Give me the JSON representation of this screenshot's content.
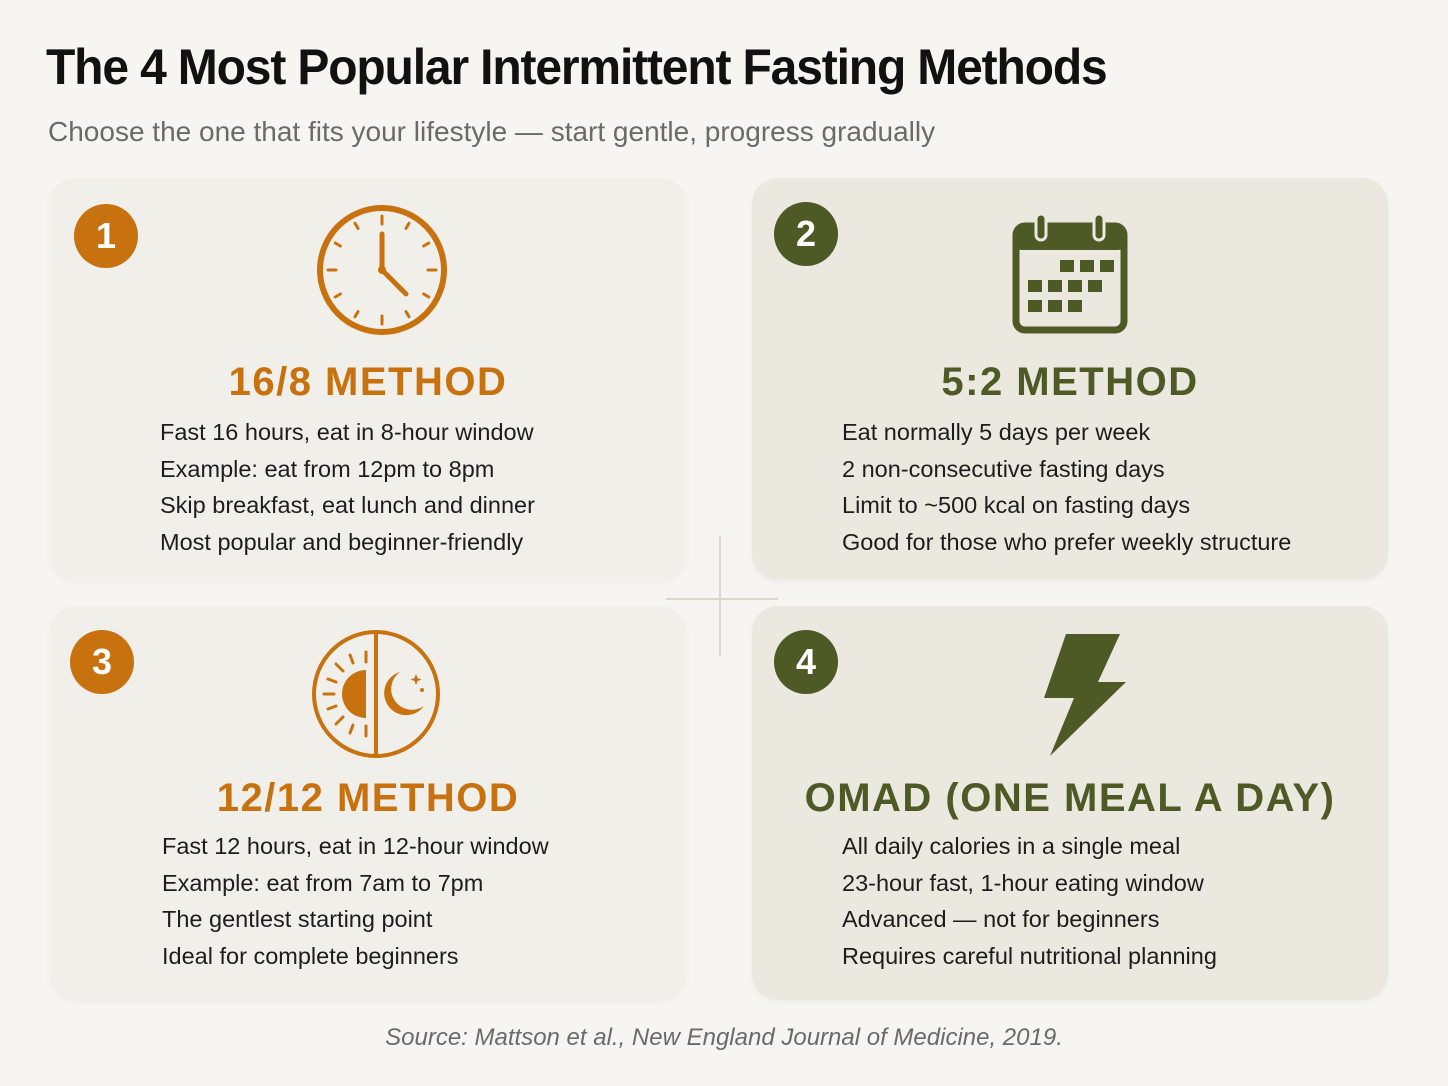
{
  "header": {
    "title": "The 4 Most Popular Intermittent Fasting Methods",
    "subtitle": "Choose the one that fits your lifestyle — start gentle, progress gradually"
  },
  "colors": {
    "orange_accent": "#c8720f",
    "green_accent": "#4d5a25",
    "background": "#f6f5f1"
  },
  "methods": [
    {
      "number": "1",
      "icon": "clock-icon",
      "title": "16/8 METHOD",
      "points": [
        "Fast 16 hours, eat in 8-hour window",
        "Example: eat from 12pm to 8pm",
        "Skip breakfast, eat lunch and dinner",
        "Most popular and beginner-friendly"
      ]
    },
    {
      "number": "2",
      "icon": "calendar-icon",
      "title": "5:2 METHOD",
      "points": [
        "Eat normally 5 days per week",
        "2 non-consecutive fasting days",
        "Limit to ~500 kcal on fasting days",
        "Good for those who prefer weekly structure"
      ]
    },
    {
      "number": "3",
      "icon": "sun-moon-icon",
      "title": "12/12 METHOD",
      "points": [
        "Fast 12 hours, eat in 12-hour window",
        "Example: eat from 7am to 7pm",
        "The gentlest starting point",
        "Ideal for complete beginners"
      ]
    },
    {
      "number": "4",
      "icon": "lightning-bolt-icon",
      "title": "OMAD (ONE MEAL A DAY)",
      "points": [
        "All daily calories in a single meal",
        "23-hour fast, 1-hour eating window",
        "Advanced — not for beginners",
        "Requires careful nutritional planning"
      ]
    }
  ],
  "footer": {
    "source": "Source: Mattson et al., New England Journal of Medicine, 2019."
  }
}
